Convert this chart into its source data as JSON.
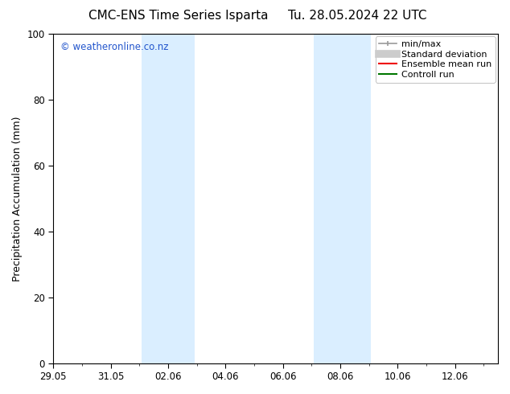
{
  "title_left": "CMC-ENS Time Series Isparta",
  "title_right": "Tu. 28.05.2024 22 UTC",
  "ylabel": "Precipitation Accumulation (mm)",
  "ylim": [
    0,
    100
  ],
  "yticks": [
    0,
    20,
    40,
    60,
    80,
    100
  ],
  "xlim": [
    0,
    15.5
  ],
  "xtick_labels": [
    "29.05",
    "31.05",
    "02.06",
    "04.06",
    "06.06",
    "08.06",
    "10.06",
    "12.06"
  ],
  "xtick_positions": [
    0,
    2,
    4,
    6,
    8,
    10,
    12,
    14
  ],
  "watermark": "© weatheronline.co.nz",
  "watermark_color": "#2255cc",
  "background_color": "#ffffff",
  "shaded_bands": [
    {
      "start_day": 3.08,
      "end_day": 4.92
    },
    {
      "start_day": 9.08,
      "end_day": 11.08
    }
  ],
  "shaded_color": "#daeeff",
  "legend_items": [
    {
      "label": "min/max",
      "color": "#999999",
      "lw": 1.2,
      "ls": "-",
      "type": "line_with_caps"
    },
    {
      "label": "Standard deviation",
      "color": "#cccccc",
      "lw": 7,
      "ls": "-",
      "type": "thick"
    },
    {
      "label": "Ensemble mean run",
      "color": "#ee0000",
      "lw": 1.5,
      "ls": "-",
      "type": "line"
    },
    {
      "label": "Controll run",
      "color": "#007700",
      "lw": 1.5,
      "ls": "-",
      "type": "line"
    }
  ],
  "font_size_title": 11,
  "font_size_axis": 9,
  "font_size_tick": 8.5,
  "font_size_legend": 8,
  "font_size_watermark": 8.5
}
